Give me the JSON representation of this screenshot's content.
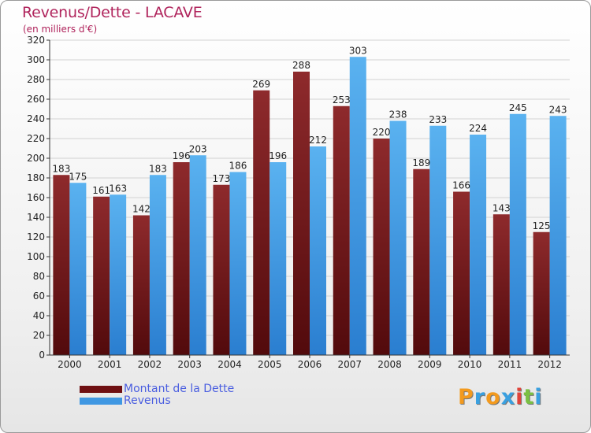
{
  "chart_data": {
    "type": "bar",
    "title": "Revenus/Dette - LACAVE",
    "subtitle": "(en milliers d'€)",
    "categories": [
      "2000",
      "2001",
      "2002",
      "2003",
      "2004",
      "2005",
      "2006",
      "2007",
      "2008",
      "2009",
      "2010",
      "2011",
      "2012"
    ],
    "series": [
      {
        "name": "Montant de la Dette",
        "color": "#7a1e21",
        "values": [
          183,
          161,
          142,
          196,
          173,
          269,
          288,
          253,
          220,
          189,
          166,
          143,
          125
        ]
      },
      {
        "name": "Revenus",
        "color": "#4aa3e8",
        "values": [
          175,
          163,
          183,
          203,
          186,
          196,
          212,
          303,
          238,
          233,
          224,
          245,
          243
        ]
      }
    ],
    "ylim": [
      0,
      320
    ],
    "ytick_step": 20,
    "grid": true,
    "legend_position": "bottom-left"
  },
  "logo": {
    "text": "Proxiti",
    "colors": [
      "#f39a1e",
      "#3aa0e0",
      "#f39a1e",
      "#3aa0e0",
      "#e0443a",
      "#7ac043",
      "#3aa0e0"
    ]
  }
}
